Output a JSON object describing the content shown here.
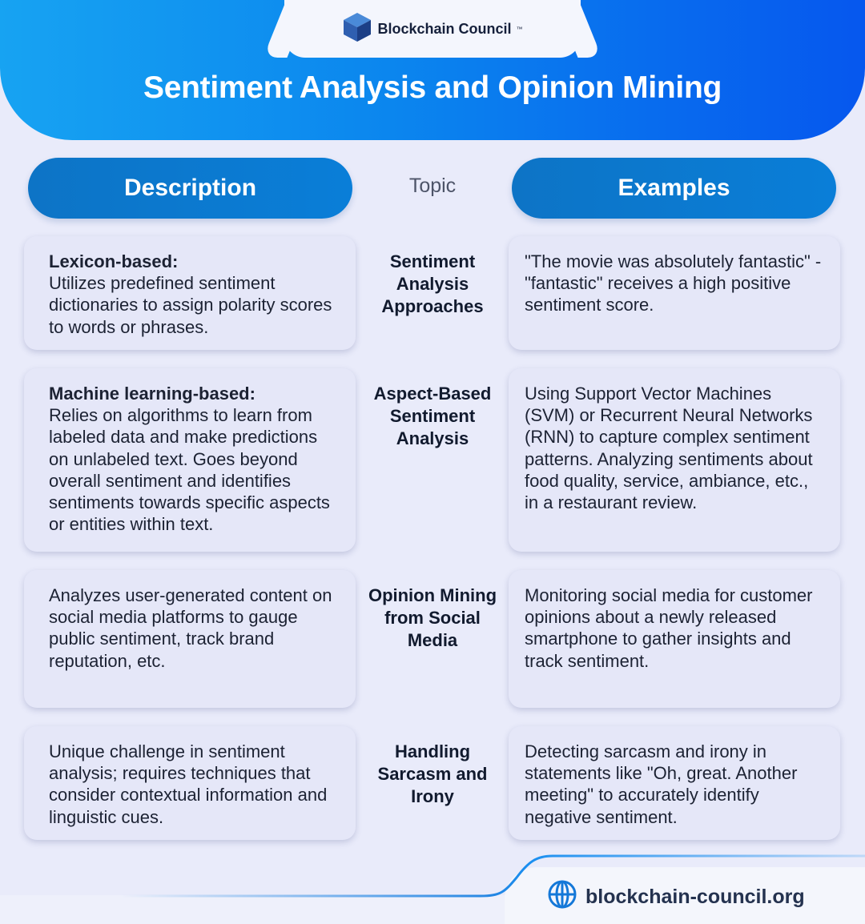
{
  "brand": {
    "name": "Blockchain Council",
    "trademark": "™",
    "icon": "cube-icon"
  },
  "title": "Sentiment Analysis and Opinion Mining",
  "columns": {
    "description": "Description",
    "topic": "Topic",
    "examples": "Examples"
  },
  "rows": [
    {
      "topic": "Sentiment Analysis Approaches",
      "description_lead": "Lexicon-based:",
      "description": "Utilizes predefined sentiment dictionaries to assign polarity scores to words or phrases.",
      "example": "\"The movie was absolutely fantastic\" - \"fantastic\" receives a high positive sentiment score."
    },
    {
      "topic": "Aspect-Based Sentiment Analysis",
      "description_lead": "Machine learning-based:",
      "description": "Relies on algorithms to learn from labeled data and make predictions on unlabeled text. Goes beyond overall sentiment and identifies sentiments towards specific aspects or entities within text.",
      "example": "Using Support Vector Machines (SVM) or Recurrent Neural Networks (RNN) to capture complex sentiment patterns. Analyzing sentiments about food quality, service, ambiance, etc., in a restaurant review."
    },
    {
      "topic": "Opinion Mining from Social Media",
      "description_lead": "",
      "description": "Analyzes user-generated content on social media platforms to gauge public sentiment, track brand reputation, etc.",
      "example": "Monitoring social media for customer opinions about a newly released smartphone to gather insights and track sentiment."
    },
    {
      "topic": "Handling Sarcasm and Irony",
      "description_lead": "",
      "description": "Unique challenge in sentiment analysis; requires techniques that consider contextual information and linguistic cues.",
      "example": "Detecting sarcasm and irony in statements like \"Oh, great. Another meeting\" to accurately identify negative sentiment."
    }
  ],
  "footer": {
    "url": "blockchain-council.org",
    "icon": "globe-icon"
  },
  "colors": {
    "header_start": "#17a3f2",
    "header_end": "#0657ee",
    "pill": "#0a7ed8",
    "background": "#e9ebfa",
    "card": "#e5e7f8"
  }
}
